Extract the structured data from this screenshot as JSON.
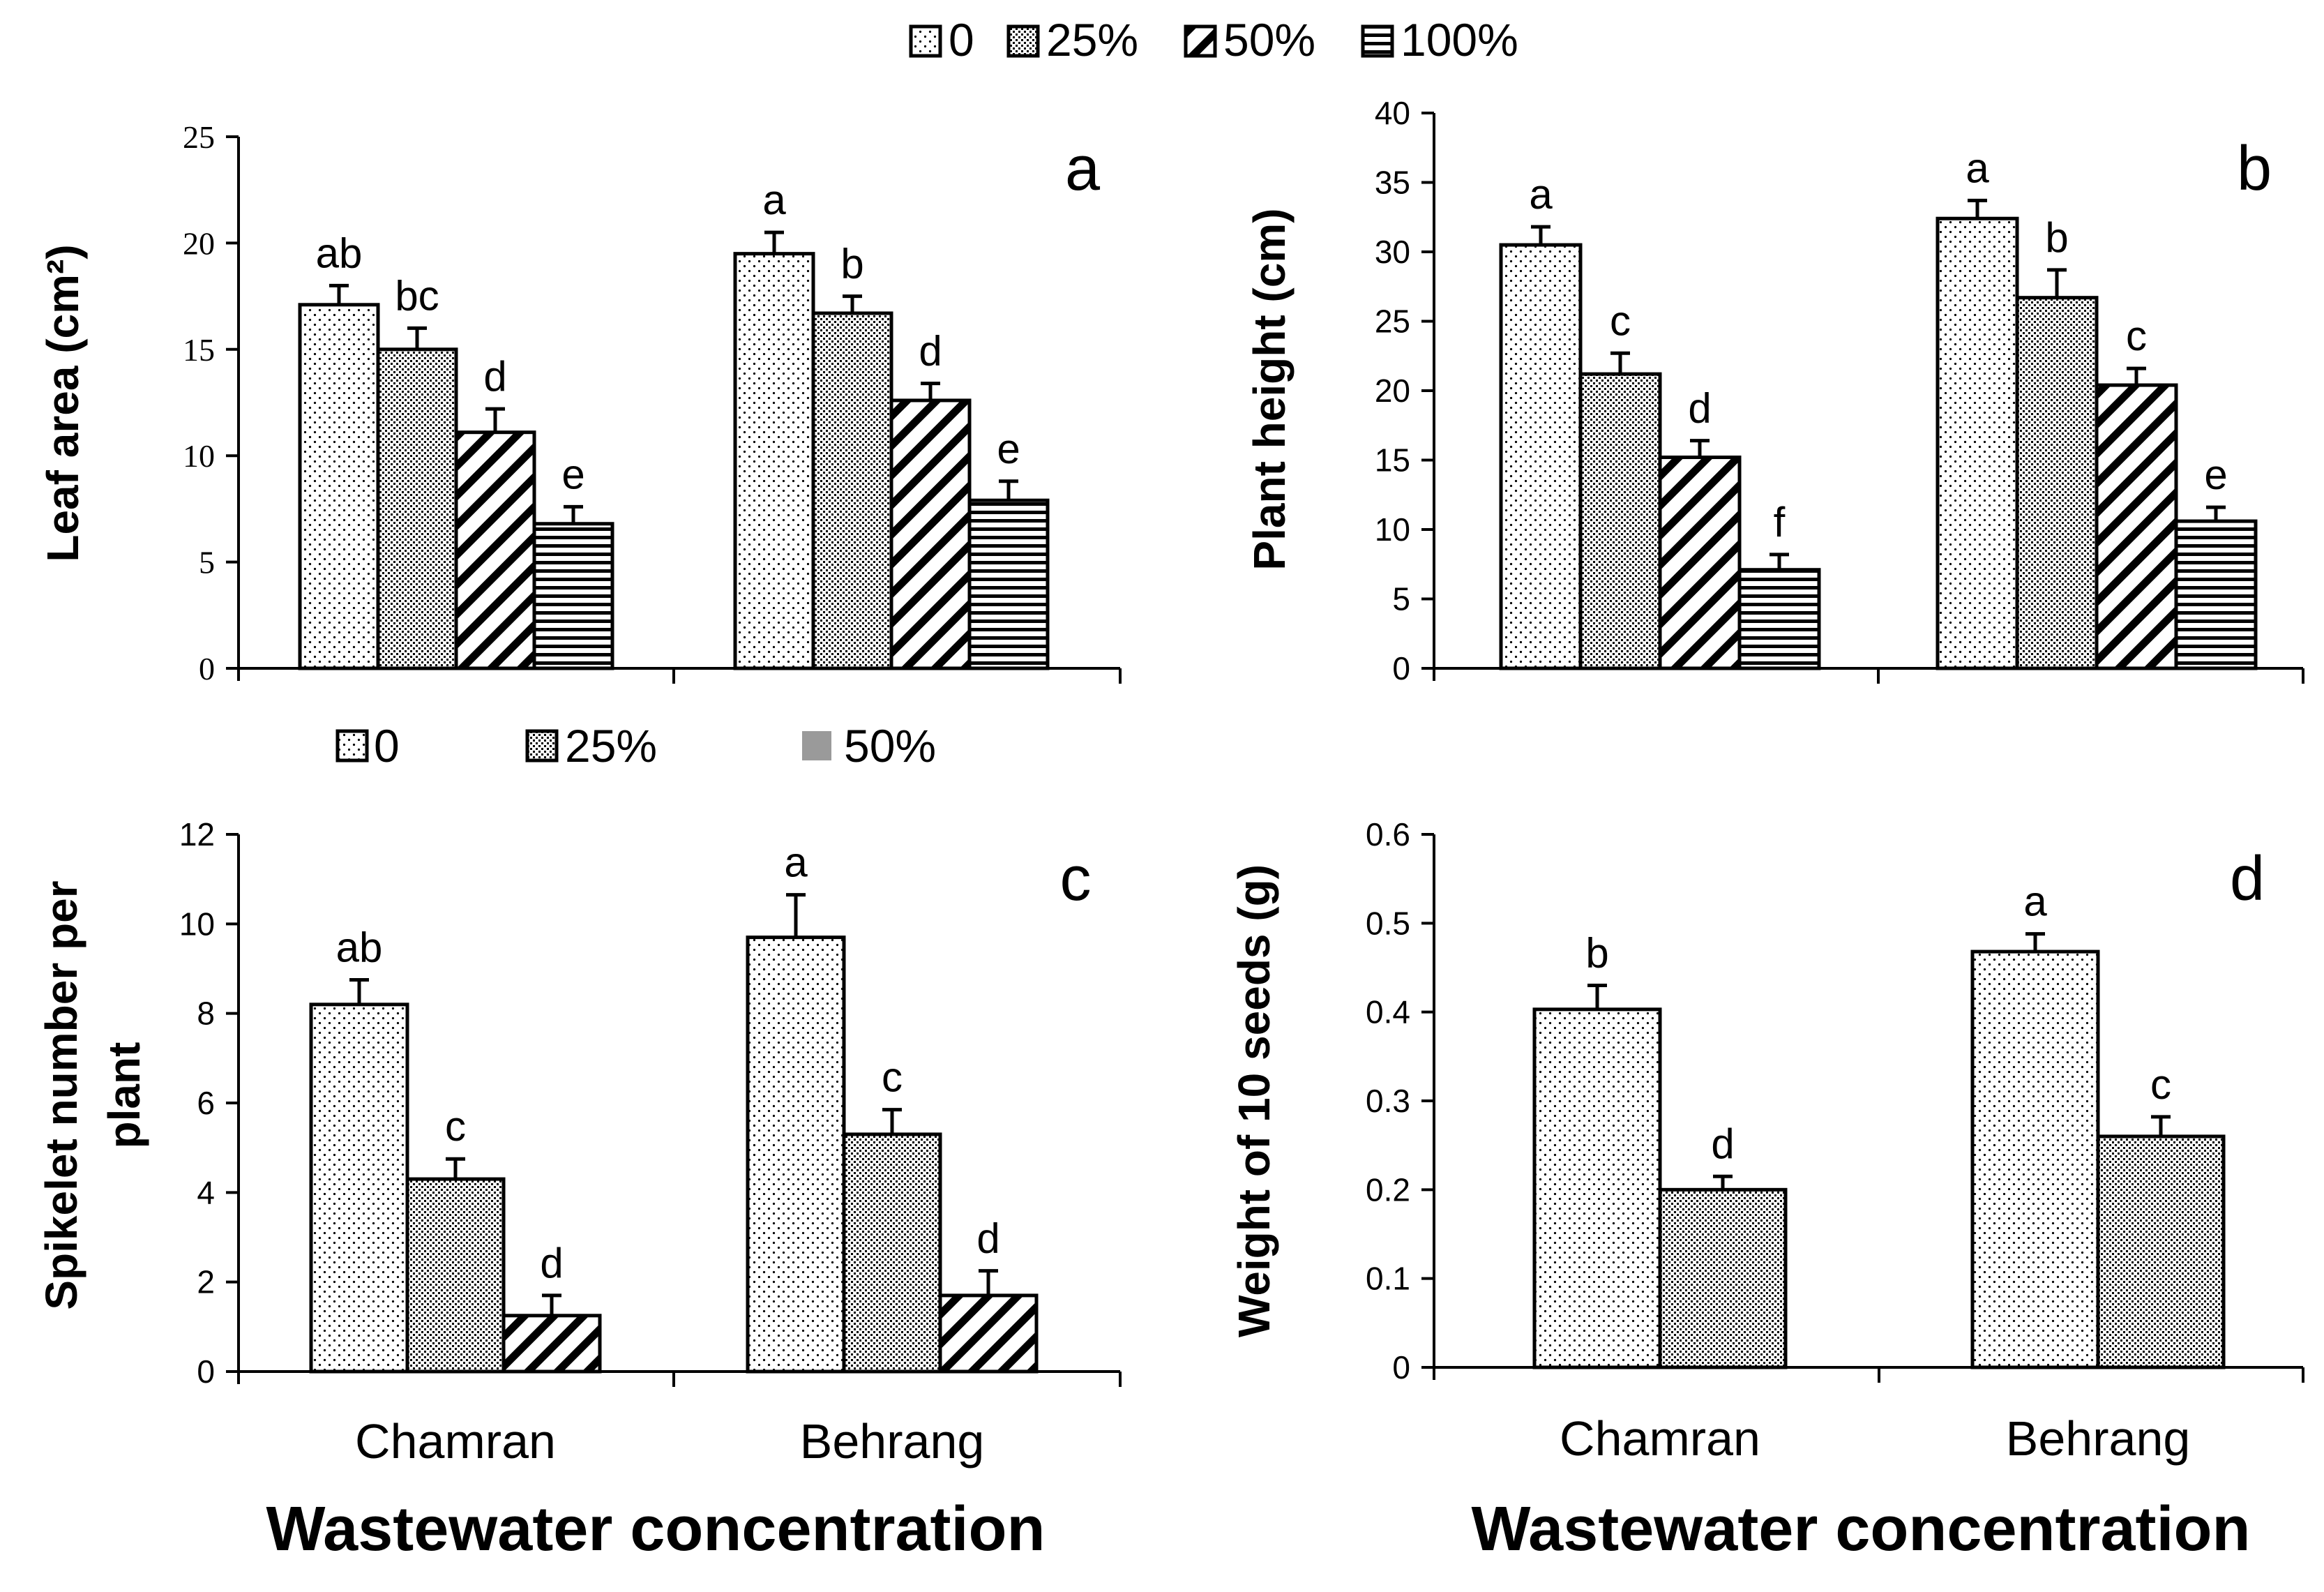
{
  "legend_top": {
    "entries": [
      "0",
      "25%",
      "50%",
      "100%"
    ]
  },
  "legend_bottom": {
    "entries": [
      "0",
      "25%",
      "50%"
    ]
  },
  "chart_data": [
    {
      "panel": "a",
      "type": "bar",
      "ylabel": "Leaf area (cm²)",
      "xlabel": "",
      "categories": [
        "Chamran",
        "Behrang"
      ],
      "ylim": [
        0,
        25
      ],
      "yticks": [
        0,
        5,
        10,
        15,
        20,
        25
      ],
      "series": [
        {
          "name": "0",
          "values": [
            17.1,
            19.5
          ],
          "errors": [
            0.9,
            1.0
          ],
          "letters": [
            "ab",
            "a"
          ]
        },
        {
          "name": "25%",
          "values": [
            15.0,
            16.7
          ],
          "errors": [
            1.0,
            0.8
          ],
          "letters": [
            "bc",
            "b"
          ]
        },
        {
          "name": "50%",
          "values": [
            11.1,
            12.6
          ],
          "errors": [
            1.1,
            0.8
          ],
          "letters": [
            "d",
            "d"
          ]
        },
        {
          "name": "100%",
          "values": [
            6.8,
            7.9
          ],
          "errors": [
            0.8,
            0.9
          ],
          "letters": [
            "e",
            "e"
          ]
        }
      ]
    },
    {
      "panel": "b",
      "type": "bar",
      "ylabel": "Plant height (cm)",
      "xlabel": "",
      "categories": [
        "Chamran",
        "Behrang"
      ],
      "ylim": [
        0,
        40
      ],
      "yticks": [
        0,
        5,
        10,
        15,
        20,
        25,
        30,
        35,
        40
      ],
      "series": [
        {
          "name": "0",
          "values": [
            30.5,
            32.4
          ],
          "errors": [
            1.3,
            1.3
          ],
          "letters": [
            "a",
            "a"
          ]
        },
        {
          "name": "25%",
          "values": [
            21.2,
            26.7
          ],
          "errors": [
            1.5,
            2.0
          ],
          "letters": [
            "c",
            "b"
          ]
        },
        {
          "name": "50%",
          "values": [
            15.2,
            20.4
          ],
          "errors": [
            1.2,
            1.2
          ],
          "letters": [
            "d",
            "c"
          ]
        },
        {
          "name": "100%",
          "values": [
            7.1,
            10.6
          ],
          "errors": [
            1.1,
            1.0
          ],
          "letters": [
            "f",
            "e"
          ]
        }
      ]
    },
    {
      "panel": "c",
      "type": "bar",
      "ylabel": "Spikelet number per plant",
      "ylabel_lines": [
        "Spikelet number per",
        "plant"
      ],
      "xlabel": "Wastewater concentration",
      "categories": [
        "Chamran",
        "Behrang"
      ],
      "ylim": [
        0,
        12
      ],
      "yticks": [
        0,
        2,
        4,
        6,
        8,
        10,
        12
      ],
      "series": [
        {
          "name": "0",
          "values": [
            8.2,
            9.7
          ],
          "errors": [
            0.55,
            0.95
          ],
          "letters": [
            "ab",
            "a"
          ]
        },
        {
          "name": "25%",
          "values": [
            4.3,
            5.3
          ],
          "errors": [
            0.45,
            0.55
          ],
          "letters": [
            "c",
            "c"
          ]
        },
        {
          "name": "50%",
          "values": [
            1.25,
            1.7
          ],
          "errors": [
            0.45,
            0.55
          ],
          "letters": [
            "d",
            "d"
          ]
        }
      ]
    },
    {
      "panel": "d",
      "type": "bar",
      "ylabel": "Weight of 10 seeds (g)",
      "xlabel": "Wastewater concentration",
      "categories": [
        "Chamran",
        "Behrang"
      ],
      "ylim": [
        0,
        0.6
      ],
      "yticks": [
        "0",
        "0.1",
        "0.2",
        "0.3",
        "0.4",
        "0.5",
        "0.6"
      ],
      "series": [
        {
          "name": "0",
          "values": [
            0.403,
            0.468
          ],
          "errors": [
            0.027,
            0.02
          ],
          "letters": [
            "b",
            "a"
          ]
        },
        {
          "name": "25%",
          "values": [
            0.2,
            0.26
          ],
          "errors": [
            0.015,
            0.022
          ],
          "letters": [
            "d",
            "c"
          ]
        }
      ]
    }
  ]
}
